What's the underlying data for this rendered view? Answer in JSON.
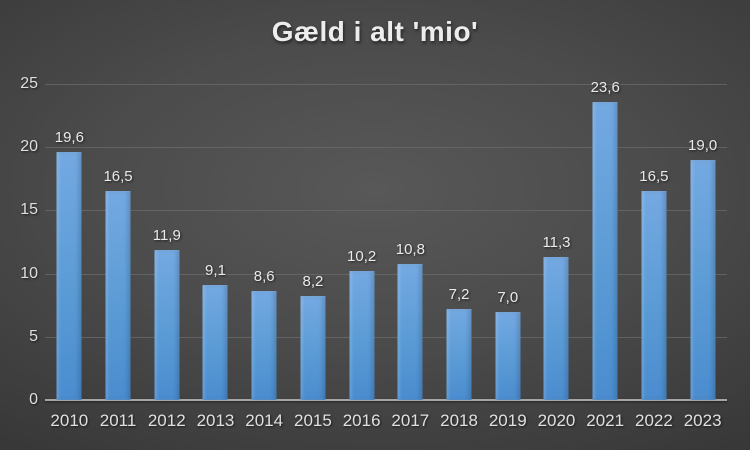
{
  "chart_data": {
    "type": "bar",
    "title": "Gæld i alt 'mio'",
    "categories": [
      "2010",
      "2011",
      "2012",
      "2013",
      "2014",
      "2015",
      "2016",
      "2017",
      "2018",
      "2019",
      "2020",
      "2021",
      "2022",
      "2023"
    ],
    "values": [
      19.6,
      16.5,
      11.9,
      9.1,
      8.6,
      8.2,
      10.2,
      10.8,
      7.2,
      7.0,
      11.3,
      23.6,
      16.5,
      19.0
    ],
    "value_labels": [
      "19,6",
      "16,5",
      "11,9",
      "9,1",
      "8,6",
      "8,2",
      "10,2",
      "10,8",
      "7,2",
      "7,0",
      "11,3",
      "23,6",
      "16,5",
      "19,0"
    ],
    "xlabel": "",
    "ylabel": "",
    "ylim": [
      0,
      25
    ],
    "yticks": [
      0,
      5,
      10,
      15,
      20,
      25
    ],
    "ytick_labels": [
      "0",
      "5",
      "10",
      "15",
      "20",
      "25"
    ],
    "grid": true,
    "legend": "none",
    "colors": {
      "bar": "#5b9bd5",
      "bar_gradient_top": "#74a9e2",
      "bar_gradient_bottom": "#4a8ccf",
      "background_center": "#585858",
      "background_edge": "#222222",
      "gridline": "#6b6b6b",
      "axis_line": "#a6a6a6",
      "text": "#e8e8e8"
    }
  }
}
